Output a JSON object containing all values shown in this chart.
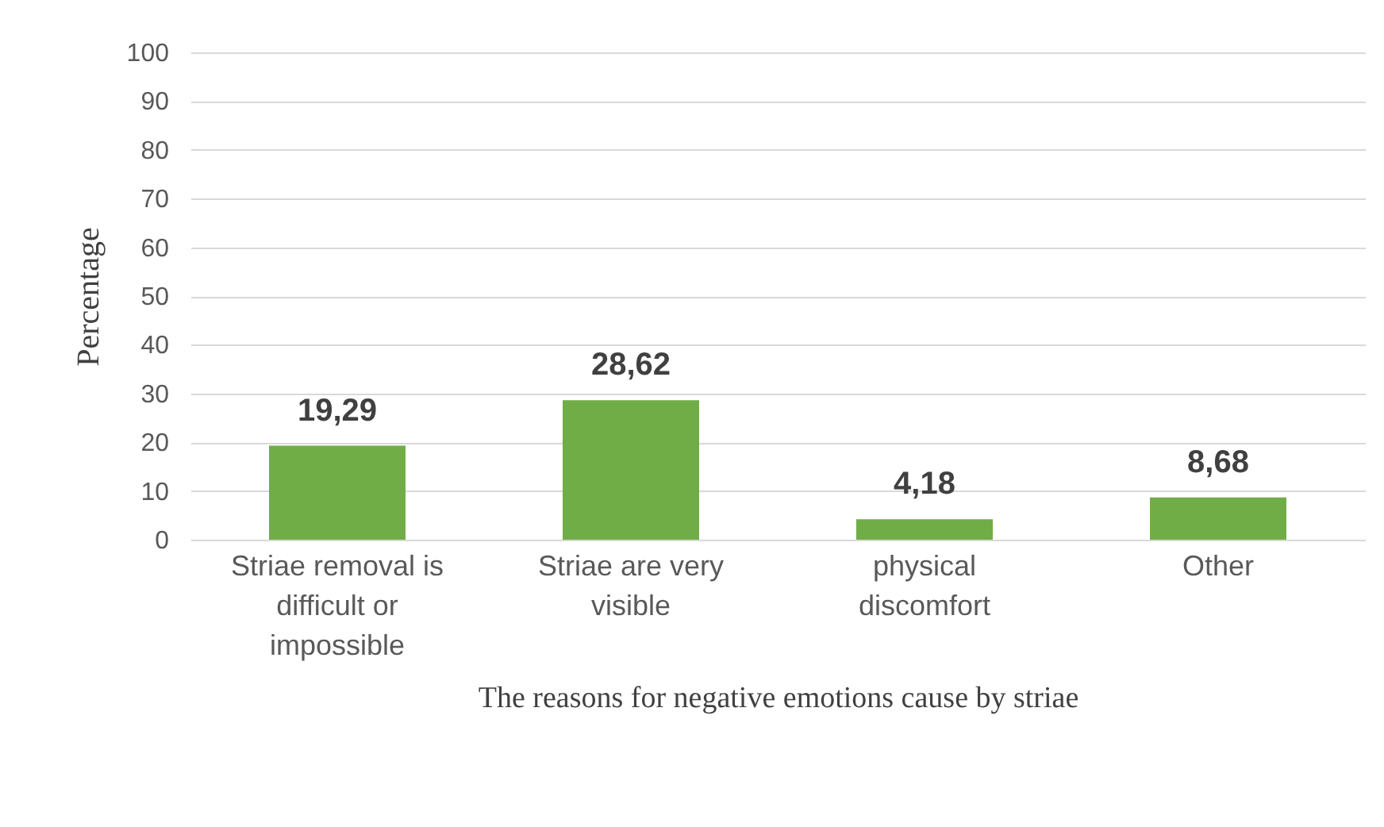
{
  "chart_data": {
    "type": "bar",
    "xlabel": "The reasons for negative emotions cause by striae",
    "ylabel": "Percentage",
    "categories": [
      "Striae removal is difficult or impossible",
      "Striae are very visible",
      "physical discomfort",
      "Other"
    ],
    "values": [
      19.29,
      28.62,
      4.18,
      8.68
    ],
    "value_labels": [
      "19,29",
      "28,62",
      "4,18",
      "8,68"
    ],
    "color": "#70ad47",
    "ylim": [
      0,
      100
    ],
    "yticks": [
      0,
      10,
      20,
      30,
      40,
      50,
      60,
      70,
      80,
      90,
      100
    ],
    "grid": "y"
  }
}
